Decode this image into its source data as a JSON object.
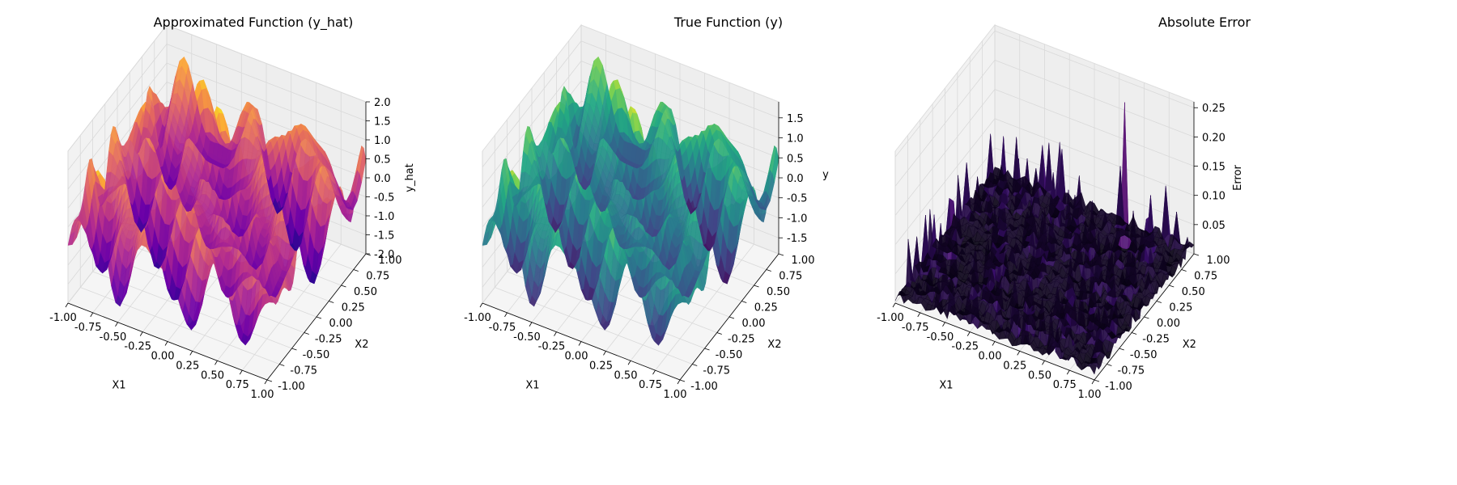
{
  "chart_data": [
    {
      "type": "surface3d",
      "title": "Approximated Function (y_hat)",
      "xlabel": "X1",
      "ylabel": "X2",
      "zlabel": "y_hat",
      "xlim": [
        -1.0,
        1.0
      ],
      "ylim": [
        -1.0,
        1.0
      ],
      "zlim": [
        -2.0,
        2.0
      ],
      "xticks": [
        "-1.00",
        "-0.75",
        "-0.50",
        "-0.25",
        "0.00",
        "0.25",
        "0.50",
        "0.75",
        "1.00"
      ],
      "yticks": [
        "-1.00",
        "-0.75",
        "-0.50",
        "-0.25",
        "0.00",
        "0.25",
        "0.50",
        "0.75",
        "1.00"
      ],
      "zticks": [
        "-2.0",
        "-1.5",
        "-1.0",
        "-0.5",
        "0.0",
        "0.5",
        "1.0",
        "1.5",
        "2.0"
      ],
      "colormap": "plasma",
      "colors": [
        "#0d0887",
        "#6a00a8",
        "#b12a90",
        "#e16462",
        "#fca636",
        "#f0f921"
      ]
    },
    {
      "type": "surface3d",
      "title": "True Function (y)",
      "xlabel": "X1",
      "ylabel": "X2",
      "zlabel": "y",
      "xlim": [
        -1.0,
        1.0
      ],
      "ylim": [
        -1.0,
        1.0
      ],
      "zlim": [
        -1.9,
        1.9
      ],
      "xticks": [
        "-1.00",
        "-0.75",
        "-0.50",
        "-0.25",
        "0.00",
        "0.25",
        "0.50",
        "0.75",
        "1.00"
      ],
      "yticks": [
        "-1.00",
        "-0.75",
        "-0.50",
        "-0.25",
        "0.00",
        "0.25",
        "0.50",
        "0.75",
        "1.00"
      ],
      "zticks": [
        "-1.5",
        "-1.0",
        "-0.5",
        "0.0",
        "0.5",
        "1.0",
        "1.5"
      ],
      "colormap": "viridis",
      "colors": [
        "#440154",
        "#414487",
        "#2a788e",
        "#22a884",
        "#7ad151",
        "#fde725"
      ]
    },
    {
      "type": "surface3d",
      "title": "Absolute Error",
      "xlabel": "X1",
      "ylabel": "X2",
      "zlabel": "Error",
      "xlim": [
        -1.0,
        1.0
      ],
      "ylim": [
        -1.0,
        1.0
      ],
      "zlim": [
        0.0,
        0.26
      ],
      "xticks": [
        "-1.00",
        "-0.75",
        "-0.50",
        "-0.25",
        "0.00",
        "0.25",
        "0.50",
        "0.75",
        "1.00"
      ],
      "yticks": [
        "-1.00",
        "-0.75",
        "-0.50",
        "-0.25",
        "0.00",
        "0.25",
        "0.50",
        "0.75",
        "1.00"
      ],
      "zticks": [
        "0.05",
        "0.10",
        "0.15",
        "0.20",
        "0.25"
      ],
      "colormap": "magma",
      "colors": [
        "#000004",
        "#3b0f70",
        "#8c2981",
        "#de4968",
        "#fe9f6d",
        "#fcfdbf"
      ]
    }
  ]
}
